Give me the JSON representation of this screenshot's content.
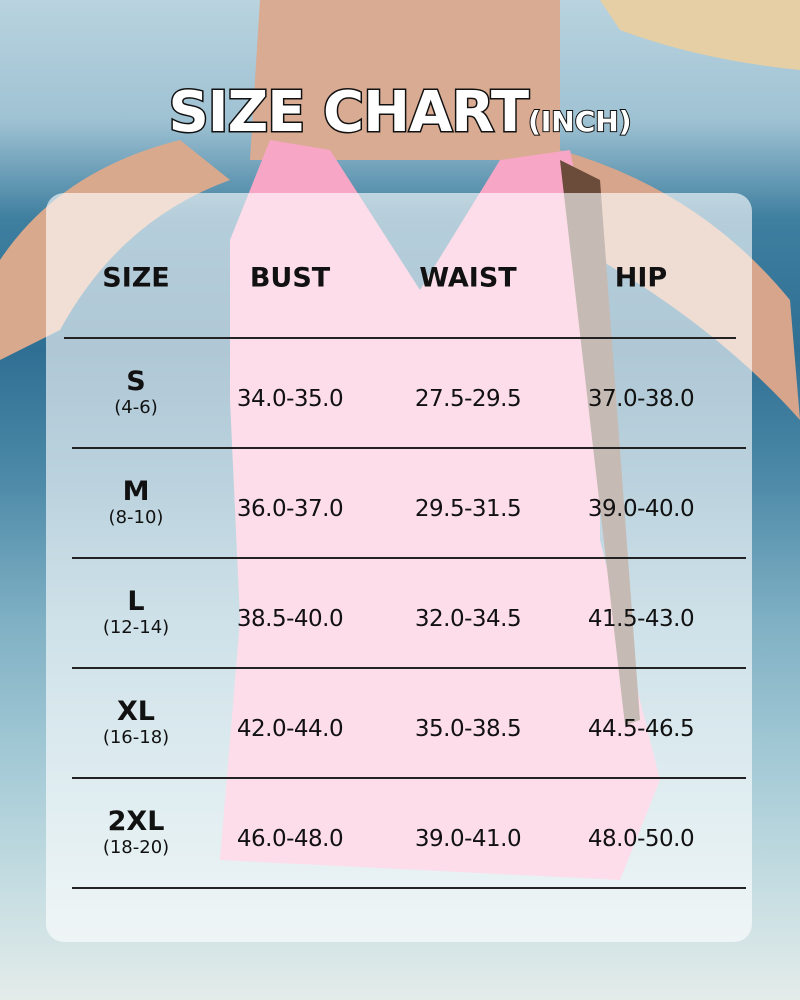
{
  "title": {
    "main": "SIZE CHART",
    "unit": "(INCH)"
  },
  "table": {
    "headers": [
      "SIZE",
      "BUST",
      "WAIST",
      "HIP"
    ],
    "rows": [
      {
        "size": "S",
        "range": "(4-6)",
        "bust": "34.0-35.0",
        "waist": "27.5-29.5",
        "hip": "37.0-38.0"
      },
      {
        "size": "M",
        "range": "(8-10)",
        "bust": "36.0-37.0",
        "waist": "29.5-31.5",
        "hip": "39.0-40.0"
      },
      {
        "size": "L",
        "range": "(12-14)",
        "bust": "38.5-40.0",
        "waist": "32.0-34.5",
        "hip": "41.5-43.0"
      },
      {
        "size": "XL",
        "range": "(16-18)",
        "bust": "42.0-44.0",
        "waist": "35.0-38.5",
        "hip": "44.5-46.5"
      },
      {
        "size": "2XL",
        "range": "(18-20)",
        "bust": "46.0-48.0",
        "waist": "39.0-41.0",
        "hip": "48.0-50.0"
      }
    ]
  },
  "colors": {
    "swimsuit": "#f7a6c6",
    "panel": "#ffffff",
    "text": "#111111"
  }
}
